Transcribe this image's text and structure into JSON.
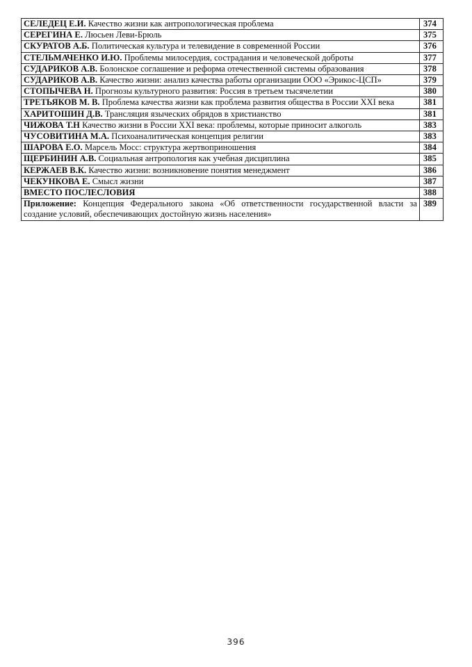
{
  "entries": [
    {
      "author": "СЕЛЕДЕЦ Е.И.",
      "title": "Качество жизни как антропологическая проблема",
      "page": "374"
    },
    {
      "author": "СЕРЕГИНА Е.",
      "title": "Люсьен Леви-Брюль",
      "page": "375"
    },
    {
      "author": "СКУРАТОВ А.Б.",
      "title": "Политическая культура и телевидение в современной России",
      "page": "376"
    },
    {
      "author": "СТЕЛЬМАЧЕНКО И.Ю.",
      "title": "Проблемы милосердия, сострадания и человеческой доброты",
      "page": "377"
    },
    {
      "author": "СУДАРИКОВ А.В.",
      "title": "Болонское соглашение и реформа отечественной системы образования",
      "page": "378"
    },
    {
      "author": "СУДАРИКОВ А.В.",
      "title": "Качество жизни: анализ качества работы организации ООО «Эрикос-ЦСП»",
      "page": "379"
    },
    {
      "author": "СТОПЫЧЕВА Н.",
      "title": "Прогнозы культурного развития: Россия в третьем тысячелетии",
      "page": "380"
    },
    {
      "author": "ТРЕТЬЯКОВ М. В.",
      "title": "Проблема качества жизни как проблема развития общества в России XXI века",
      "page": "381"
    },
    {
      "author": "ХАРИТОШИН Д.В.",
      "title": "Трансляция языческих обрядов в христианство",
      "page": "381"
    },
    {
      "author": "ЧИЖОВА Т.Н",
      "title": "Качество жизни в России XXI века: проблемы, которые приносит алкоголь",
      "page": "383"
    },
    {
      "author": "ЧУСОВИТИНА М.А.",
      "title": "Психоаналитическая концепция религии",
      "page": "383"
    },
    {
      "author": "ШАРОВА Е.О.",
      "title": "Марсель Мосс: структура жертвоприношения",
      "page": "384"
    },
    {
      "author": "ЩЕРБИНИН А.В.",
      "title": "Социальная антропология как учебная дисциплина",
      "page": "385"
    },
    {
      "author": "КЕРЖАЕВ В.К.",
      "title": "Качество жизни: возникновение понятия менеджмент",
      "page": "386"
    },
    {
      "author": "ЧЕКУНКОВА Е.",
      "title": "Смысл жизни",
      "page": "387"
    },
    {
      "author": "ВМЕСТО ПОСЛЕСЛОВИЯ",
      "title": "",
      "page": "388"
    },
    {
      "author": "Приложение:",
      "title": "Концепция Федерального закона «Об ответственности государственной власти за создание условий, обеспечивающих достойную жизнь населения»",
      "page": "389"
    }
  ],
  "footer": {
    "page_number": "396"
  }
}
